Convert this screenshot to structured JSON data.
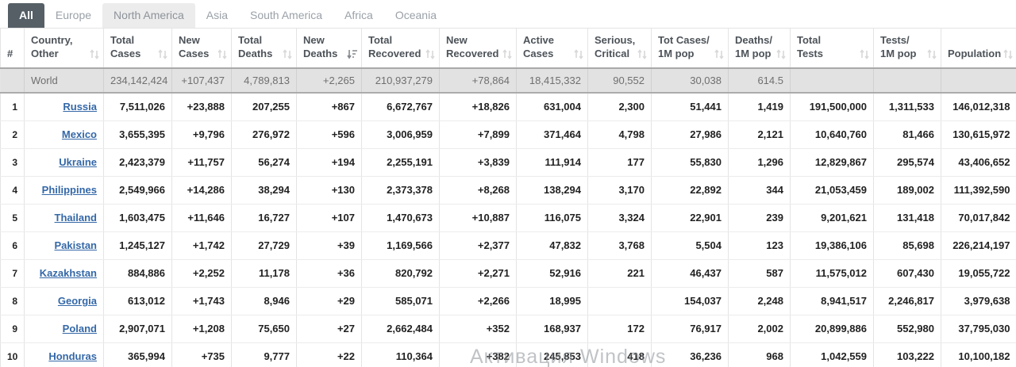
{
  "tabs": [
    {
      "label": "All",
      "state": "active"
    },
    {
      "label": "Europe",
      "state": "normal"
    },
    {
      "label": "North America",
      "state": "hover"
    },
    {
      "label": "Asia",
      "state": "normal"
    },
    {
      "label": "South America",
      "state": "normal"
    },
    {
      "label": "Africa",
      "state": "normal"
    },
    {
      "label": "Oceania",
      "state": "normal"
    }
  ],
  "columns": [
    {
      "key": "rank",
      "lines": [
        "#"
      ],
      "sortable": false,
      "sort_active": false
    },
    {
      "key": "country",
      "lines": [
        "Country,",
        "Other"
      ],
      "sortable": true,
      "sort_active": false
    },
    {
      "key": "total_cases",
      "lines": [
        "Total",
        "Cases"
      ],
      "sortable": true,
      "sort_active": false
    },
    {
      "key": "new_cases",
      "lines": [
        "New",
        "Cases"
      ],
      "sortable": true,
      "sort_active": false
    },
    {
      "key": "total_deaths",
      "lines": [
        "Total",
        "Deaths"
      ],
      "sortable": true,
      "sort_active": false
    },
    {
      "key": "new_deaths",
      "lines": [
        "New",
        "Deaths"
      ],
      "sortable": true,
      "sort_active": true
    },
    {
      "key": "total_recovered",
      "lines": [
        "Total",
        "Recovered"
      ],
      "sortable": true,
      "sort_active": false
    },
    {
      "key": "new_recovered",
      "lines": [
        "New",
        "Recovered"
      ],
      "sortable": true,
      "sort_active": false
    },
    {
      "key": "active_cases",
      "lines": [
        "Active",
        "Cases"
      ],
      "sortable": true,
      "sort_active": false
    },
    {
      "key": "serious_critical",
      "lines": [
        "Serious,",
        "Critical"
      ],
      "sortable": true,
      "sort_active": false
    },
    {
      "key": "tot_cases_1m",
      "lines": [
        "Tot Cases/",
        "1M pop"
      ],
      "sortable": true,
      "sort_active": false
    },
    {
      "key": "deaths_1m",
      "lines": [
        "Deaths/",
        "1M pop"
      ],
      "sortable": true,
      "sort_active": false
    },
    {
      "key": "total_tests",
      "lines": [
        "Total",
        "Tests"
      ],
      "sortable": true,
      "sort_active": false
    },
    {
      "key": "tests_1m",
      "lines": [
        "Tests/",
        "1M pop"
      ],
      "sortable": true,
      "sort_active": false
    },
    {
      "key": "population",
      "lines": [
        "Population"
      ],
      "sortable": true,
      "sort_active": false
    }
  ],
  "world_row": {
    "rank": "",
    "country": "World",
    "total_cases": "234,142,424",
    "new_cases": "+107,437",
    "total_deaths": "4,789,813",
    "new_deaths": "+2,265",
    "total_recovered": "210,937,279",
    "new_recovered": "+78,864",
    "active_cases": "18,415,332",
    "serious_critical": "90,552",
    "tot_cases_1m": "30,038",
    "deaths_1m": "614.5",
    "total_tests": "",
    "tests_1m": "",
    "population": ""
  },
  "rows": [
    {
      "rank": "1",
      "country": "Russia",
      "total_cases": "7,511,026",
      "new_cases": "+23,888",
      "total_deaths": "207,255",
      "new_deaths": "+867",
      "total_recovered": "6,672,767",
      "new_recovered": "+18,826",
      "active_cases": "631,004",
      "serious_critical": "2,300",
      "tot_cases_1m": "51,441",
      "deaths_1m": "1,419",
      "total_tests": "191,500,000",
      "tests_1m": "1,311,533",
      "population": "146,012,318"
    },
    {
      "rank": "2",
      "country": "Mexico",
      "total_cases": "3,655,395",
      "new_cases": "+9,796",
      "total_deaths": "276,972",
      "new_deaths": "+596",
      "total_recovered": "3,006,959",
      "new_recovered": "+7,899",
      "active_cases": "371,464",
      "serious_critical": "4,798",
      "tot_cases_1m": "27,986",
      "deaths_1m": "2,121",
      "total_tests": "10,640,760",
      "tests_1m": "81,466",
      "population": "130,615,972"
    },
    {
      "rank": "3",
      "country": "Ukraine",
      "total_cases": "2,423,379",
      "new_cases": "+11,757",
      "total_deaths": "56,274",
      "new_deaths": "+194",
      "total_recovered": "2,255,191",
      "new_recovered": "+3,839",
      "active_cases": "111,914",
      "serious_critical": "177",
      "tot_cases_1m": "55,830",
      "deaths_1m": "1,296",
      "total_tests": "12,829,867",
      "tests_1m": "295,574",
      "population": "43,406,652"
    },
    {
      "rank": "4",
      "country": "Philippines",
      "total_cases": "2,549,966",
      "new_cases": "+14,286",
      "total_deaths": "38,294",
      "new_deaths": "+130",
      "total_recovered": "2,373,378",
      "new_recovered": "+8,268",
      "active_cases": "138,294",
      "serious_critical": "3,170",
      "tot_cases_1m": "22,892",
      "deaths_1m": "344",
      "total_tests": "21,053,459",
      "tests_1m": "189,002",
      "population": "111,392,590"
    },
    {
      "rank": "5",
      "country": "Thailand",
      "total_cases": "1,603,475",
      "new_cases": "+11,646",
      "total_deaths": "16,727",
      "new_deaths": "+107",
      "total_recovered": "1,470,673",
      "new_recovered": "+10,887",
      "active_cases": "116,075",
      "serious_critical": "3,324",
      "tot_cases_1m": "22,901",
      "deaths_1m": "239",
      "total_tests": "9,201,621",
      "tests_1m": "131,418",
      "population": "70,017,842"
    },
    {
      "rank": "6",
      "country": "Pakistan",
      "total_cases": "1,245,127",
      "new_cases": "+1,742",
      "total_deaths": "27,729",
      "new_deaths": "+39",
      "total_recovered": "1,169,566",
      "new_recovered": "+2,377",
      "active_cases": "47,832",
      "serious_critical": "3,768",
      "tot_cases_1m": "5,504",
      "deaths_1m": "123",
      "total_tests": "19,386,106",
      "tests_1m": "85,698",
      "population": "226,214,197"
    },
    {
      "rank": "7",
      "country": "Kazakhstan",
      "total_cases": "884,886",
      "new_cases": "+2,252",
      "total_deaths": "11,178",
      "new_deaths": "+36",
      "total_recovered": "820,792",
      "new_recovered": "+2,271",
      "active_cases": "52,916",
      "serious_critical": "221",
      "tot_cases_1m": "46,437",
      "deaths_1m": "587",
      "total_tests": "11,575,012",
      "tests_1m": "607,430",
      "population": "19,055,722"
    },
    {
      "rank": "8",
      "country": "Georgia",
      "total_cases": "613,012",
      "new_cases": "+1,743",
      "total_deaths": "8,946",
      "new_deaths": "+29",
      "total_recovered": "585,071",
      "new_recovered": "+2,266",
      "active_cases": "18,995",
      "serious_critical": "",
      "tot_cases_1m": "154,037",
      "deaths_1m": "2,248",
      "total_tests": "8,941,517",
      "tests_1m": "2,246,817",
      "population": "3,979,638"
    },
    {
      "rank": "9",
      "country": "Poland",
      "total_cases": "2,907,071",
      "new_cases": "+1,208",
      "total_deaths": "75,650",
      "new_deaths": "+27",
      "total_recovered": "2,662,484",
      "new_recovered": "+352",
      "active_cases": "168,937",
      "serious_critical": "172",
      "tot_cases_1m": "76,917",
      "deaths_1m": "2,002",
      "total_tests": "20,899,886",
      "tests_1m": "552,980",
      "population": "37,795,030"
    },
    {
      "rank": "10",
      "country": "Honduras",
      "total_cases": "365,994",
      "new_cases": "+735",
      "total_deaths": "9,777",
      "new_deaths": "+22",
      "total_recovered": "110,364",
      "new_recovered": "+382",
      "active_cases": "245,853",
      "serious_critical": "418",
      "tot_cases_1m": "36,236",
      "deaths_1m": "968",
      "total_tests": "1,042,559",
      "tests_1m": "103,222",
      "population": "10,100,182"
    }
  ],
  "watermark": "Активация Windows",
  "icons": {
    "sort": "unsorted-arrows",
    "sort_desc": "sort-amount-desc"
  },
  "colors": {
    "tab_active_bg": "#565f66",
    "tab_hover_bg": "#ececec",
    "link_blue": "#3468a8",
    "population_blue": "#3b6bb0",
    "new_cases_yellow": "#ffeeaa",
    "new_deaths_red": "#ff0000",
    "new_recovered_green": "#c8e6c9",
    "world_row_bg": "#e2e2e2"
  }
}
